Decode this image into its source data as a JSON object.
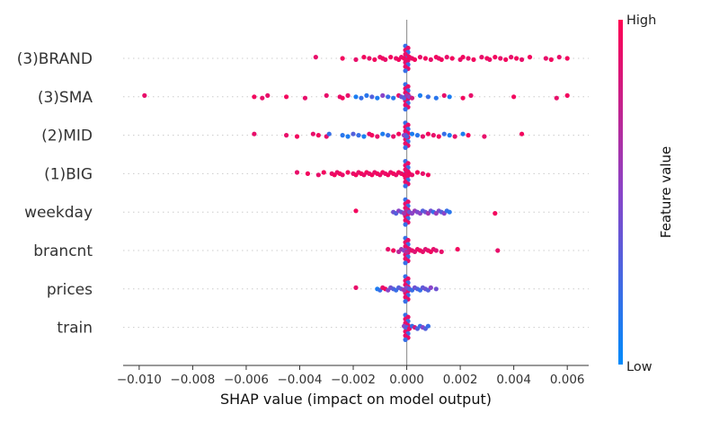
{
  "chart_data": {
    "type": "scatter",
    "subtype": "shap-beeswarm",
    "xlabel": "SHAP value (impact on model output)",
    "xlim": [
      -0.0106,
      0.0068
    ],
    "xticks": [
      -0.01,
      -0.008,
      -0.006,
      -0.004,
      -0.002,
      0.0,
      0.002,
      0.004,
      0.006
    ],
    "xtick_labels": [
      "−0.010",
      "−0.008",
      "−0.006",
      "−0.004",
      "−0.002",
      "0.000",
      "0.002",
      "0.004",
      "0.006"
    ],
    "colorbar": {
      "title": "Feature value",
      "high_label": "High",
      "low_label": "Low",
      "low_color": "#008bfb",
      "high_color": "#ff0052"
    },
    "features": [
      {
        "name": "(3)BRAND",
        "points": [
          [
            -0.0034,
            0.9
          ],
          [
            -0.0024,
            0.95
          ],
          [
            -0.0019,
            0.9
          ],
          [
            -0.0016,
            0.95
          ],
          [
            -0.0014,
            0.9
          ],
          [
            -0.0012,
            0.95
          ],
          [
            -0.001,
            0.9
          ],
          [
            -0.0009,
            0.95
          ],
          [
            -0.0008,
            0.9
          ],
          [
            -0.0006,
            0.95
          ],
          [
            -0.0004,
            0.9
          ],
          [
            -0.0003,
            0.95
          ],
          [
            -0.0002,
            0.9
          ],
          [
            -0.0001,
            0.95
          ],
          [
            0,
            0.9
          ],
          [
            0.0001,
            0.95
          ],
          [
            0.0002,
            0.9
          ],
          [
            0.0003,
            0.95
          ],
          [
            0.0005,
            0.9
          ],
          [
            0.0007,
            0.95
          ],
          [
            0.0009,
            0.9
          ],
          [
            0.0011,
            0.95
          ],
          [
            0.0012,
            0.9
          ],
          [
            0.0013,
            0.95
          ],
          [
            0.0015,
            0.9
          ],
          [
            0.0017,
            0.95
          ],
          [
            0.002,
            0.9
          ],
          [
            0.0021,
            0.95
          ],
          [
            0.0023,
            0.9
          ],
          [
            0.0025,
            0.95
          ],
          [
            0.0028,
            0.9
          ],
          [
            0.003,
            0.95
          ],
          [
            0.0031,
            0.9
          ],
          [
            0.0033,
            0.95
          ],
          [
            0.0035,
            0.9
          ],
          [
            0.0037,
            0.95
          ],
          [
            0.0039,
            0.9
          ],
          [
            0.0041,
            0.95
          ],
          [
            0.0043,
            0.9
          ],
          [
            0.0046,
            0.95
          ],
          [
            0.0052,
            0.9
          ],
          [
            0.0054,
            0.95
          ],
          [
            0.0057,
            0.9
          ],
          [
            0.006,
            0.95
          ]
        ]
      },
      {
        "name": "(3)SMA",
        "points": [
          [
            -0.0098,
            0.9
          ],
          [
            -0.0057,
            0.95
          ],
          [
            -0.0054,
            0.9
          ],
          [
            -0.0052,
            0.9
          ],
          [
            -0.0045,
            0.95
          ],
          [
            -0.0038,
            0.9
          ],
          [
            -0.003,
            0.9
          ],
          [
            -0.0025,
            0.9
          ],
          [
            -0.0024,
            0.95
          ],
          [
            -0.0022,
            0.9
          ],
          [
            -0.0019,
            0.1
          ],
          [
            -0.0017,
            0.2
          ],
          [
            -0.0015,
            0.15
          ],
          [
            -0.0013,
            0.3
          ],
          [
            -0.0011,
            0.1
          ],
          [
            -0.0009,
            0.5
          ],
          [
            -0.0007,
            0.2
          ],
          [
            -0.0005,
            0.15
          ],
          [
            -0.0003,
            0.9
          ],
          [
            -0.0002,
            0.4
          ],
          [
            -0.0001,
            0.3
          ],
          [
            0,
            0.6
          ],
          [
            0.0001,
            0.5
          ],
          [
            0.0002,
            0.8
          ],
          [
            0.0005,
            0.1
          ],
          [
            0.0008,
            0.2
          ],
          [
            0.0011,
            0.15
          ],
          [
            0.0014,
            0.9
          ],
          [
            0.0016,
            0.1
          ],
          [
            0.0021,
            0.95
          ],
          [
            0.0024,
            0.9
          ],
          [
            0.004,
            0.95
          ],
          [
            0.0056,
            0.9
          ],
          [
            0.006,
            0.95
          ]
        ]
      },
      {
        "name": "(2)MID",
        "points": [
          [
            -0.0057,
            0.9
          ],
          [
            -0.0045,
            0.9
          ],
          [
            -0.0041,
            0.95
          ],
          [
            -0.0035,
            0.9
          ],
          [
            -0.0033,
            0.95
          ],
          [
            -0.003,
            0.9
          ],
          [
            -0.0029,
            0.2
          ],
          [
            -0.0024,
            0.15
          ],
          [
            -0.0022,
            0.1
          ],
          [
            -0.002,
            0.3
          ],
          [
            -0.0018,
            0.2
          ],
          [
            -0.0016,
            0.1
          ],
          [
            -0.0014,
            0.9
          ],
          [
            -0.0013,
            0.95
          ],
          [
            -0.0011,
            0.9
          ],
          [
            -0.0009,
            0.1
          ],
          [
            -0.0007,
            0.2
          ],
          [
            -0.0005,
            0.9
          ],
          [
            -0.0003,
            0.95
          ],
          [
            -0.0001,
            0.5
          ],
          [
            0,
            0.3
          ],
          [
            0.0002,
            0.1
          ],
          [
            0.0004,
            0.15
          ],
          [
            0.0006,
            0.9
          ],
          [
            0.0008,
            0.95
          ],
          [
            0.001,
            0.9
          ],
          [
            0.0012,
            0.95
          ],
          [
            0.0014,
            0.2
          ],
          [
            0.0016,
            0.1
          ],
          [
            0.0018,
            0.9
          ],
          [
            0.0021,
            0.1
          ],
          [
            0.0023,
            0.95
          ],
          [
            0.0029,
            0.9
          ],
          [
            0.0043,
            0.95
          ]
        ]
      },
      {
        "name": "(1)BIG",
        "points": [
          [
            -0.0041,
            0.9
          ],
          [
            -0.0037,
            0.95
          ],
          [
            -0.0033,
            0.9
          ],
          [
            -0.0031,
            0.95
          ],
          [
            -0.0028,
            0.9
          ],
          [
            -0.0027,
            0.95
          ],
          [
            -0.0026,
            0.9
          ],
          [
            -0.0025,
            0.95
          ],
          [
            -0.0024,
            0.9
          ],
          [
            -0.0022,
            0.95
          ],
          [
            -0.002,
            0.9
          ],
          [
            -0.0019,
            0.95
          ],
          [
            -0.0018,
            0.9
          ],
          [
            -0.0017,
            0.95
          ],
          [
            -0.0016,
            0.9
          ],
          [
            -0.0015,
            0.95
          ],
          [
            -0.0014,
            0.9
          ],
          [
            -0.0013,
            0.95
          ],
          [
            -0.0012,
            0.9
          ],
          [
            -0.0011,
            0.95
          ],
          [
            -0.001,
            0.9
          ],
          [
            -0.0009,
            0.95
          ],
          [
            -0.0008,
            0.9
          ],
          [
            -0.0007,
            0.95
          ],
          [
            -0.0006,
            0.9
          ],
          [
            -0.0005,
            0.95
          ],
          [
            -0.0004,
            0.9
          ],
          [
            -0.0003,
            0.95
          ],
          [
            -0.0002,
            0.9
          ],
          [
            -0.0001,
            0.95
          ],
          [
            0,
            0.9
          ],
          [
            0.0001,
            0.95
          ],
          [
            0.0002,
            0.9
          ],
          [
            0.0004,
            0.95
          ],
          [
            0.0006,
            0.9
          ],
          [
            0.0008,
            0.95
          ]
        ]
      },
      {
        "name": "weekday",
        "points": [
          [
            -0.0019,
            0.95
          ],
          [
            -0.0005,
            0.4
          ],
          [
            -0.0004,
            0.3
          ],
          [
            -0.0003,
            0.5
          ],
          [
            -0.0002,
            0.35
          ],
          [
            -0.0001,
            0.6
          ],
          [
            0,
            0.7
          ],
          [
            0.0001,
            0.4
          ],
          [
            0.0002,
            0.5
          ],
          [
            0.0003,
            0.55
          ],
          [
            0.0004,
            0.45
          ],
          [
            0.0005,
            0.5
          ],
          [
            0.0006,
            0.3
          ],
          [
            0.0007,
            0.4
          ],
          [
            0.0008,
            0.6
          ],
          [
            0.0009,
            0.4
          ],
          [
            0.001,
            0.2
          ],
          [
            0.0011,
            0.55
          ],
          [
            0.0012,
            0.45
          ],
          [
            0.0013,
            0.3
          ],
          [
            0.0014,
            0.5
          ],
          [
            0.0015,
            0.2
          ],
          [
            0.0016,
            0.15
          ],
          [
            0.0033,
            0.95
          ]
        ]
      },
      {
        "name": "brancnt",
        "points": [
          [
            -0.0007,
            0.9
          ],
          [
            -0.0005,
            0.95
          ],
          [
            -0.0003,
            0.7
          ],
          [
            -0.0002,
            0.6
          ],
          [
            -0.0001,
            0.5
          ],
          [
            0,
            0.7
          ],
          [
            0.0001,
            0.8
          ],
          [
            0.0002,
            0.9
          ],
          [
            0.0003,
            0.85
          ],
          [
            0.0004,
            0.9
          ],
          [
            0.0005,
            0.95
          ],
          [
            0.0006,
            0.9
          ],
          [
            0.0007,
            0.85
          ],
          [
            0.0008,
            0.9
          ],
          [
            0.0009,
            0.95
          ],
          [
            0.001,
            0.9
          ],
          [
            0.0011,
            0.85
          ],
          [
            0.0013,
            0.9
          ],
          [
            0.0019,
            0.95
          ],
          [
            0.0034,
            0.9
          ]
        ]
      },
      {
        "name": "prices",
        "points": [
          [
            -0.0019,
            0.9
          ],
          [
            -0.0011,
            0.1
          ],
          [
            -0.001,
            0.2
          ],
          [
            -0.0009,
            0.9
          ],
          [
            -0.0008,
            0.95
          ],
          [
            -0.0007,
            0.5
          ],
          [
            -0.0006,
            0.4
          ],
          [
            -0.0005,
            0.3
          ],
          [
            -0.0004,
            0.2
          ],
          [
            -0.0003,
            0.3
          ],
          [
            -0.0002,
            0.4
          ],
          [
            -0.0001,
            0.6
          ],
          [
            0,
            0.5
          ],
          [
            0.0001,
            0.3
          ],
          [
            0.0002,
            0.2
          ],
          [
            0.0003,
            0.4
          ],
          [
            0.0004,
            0.3
          ],
          [
            0.0005,
            0.2
          ],
          [
            0.0006,
            0.35
          ],
          [
            0.0007,
            0.4
          ],
          [
            0.0008,
            0.3
          ],
          [
            0.0009,
            0.5
          ],
          [
            0.0011,
            0.4
          ]
        ]
      },
      {
        "name": "train",
        "points": [
          [
            -0.0001,
            0.5
          ],
          [
            0,
            0.3
          ],
          [
            0.0001,
            0.9
          ],
          [
            0.0002,
            0.2
          ],
          [
            0.0003,
            0.8
          ],
          [
            0.0004,
            0.3
          ],
          [
            0.0005,
            0.2
          ],
          [
            0.0006,
            0.5
          ],
          [
            0.0007,
            0.3
          ],
          [
            0.0008,
            0.2
          ]
        ]
      }
    ]
  }
}
